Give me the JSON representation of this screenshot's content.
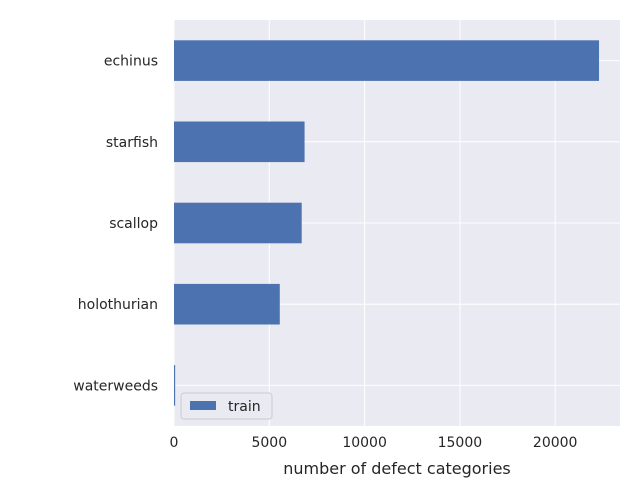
{
  "chart_data": {
    "type": "bar",
    "orientation": "horizontal",
    "categories": [
      "echinus",
      "starfish",
      "scallop",
      "holothurian",
      "waterweeds"
    ],
    "series": [
      {
        "name": "train",
        "values": [
          22300,
          6850,
          6700,
          5550,
          60
        ],
        "color": "#4c72b0"
      }
    ],
    "xlabel": "number of defect categories",
    "ylabel": "",
    "xlim": [
      0,
      23400
    ],
    "xticks": [
      0,
      5000,
      10000,
      15000,
      20000
    ],
    "grid": true,
    "legend_position": "bottom-left",
    "background_color": "#eaeaf2"
  }
}
